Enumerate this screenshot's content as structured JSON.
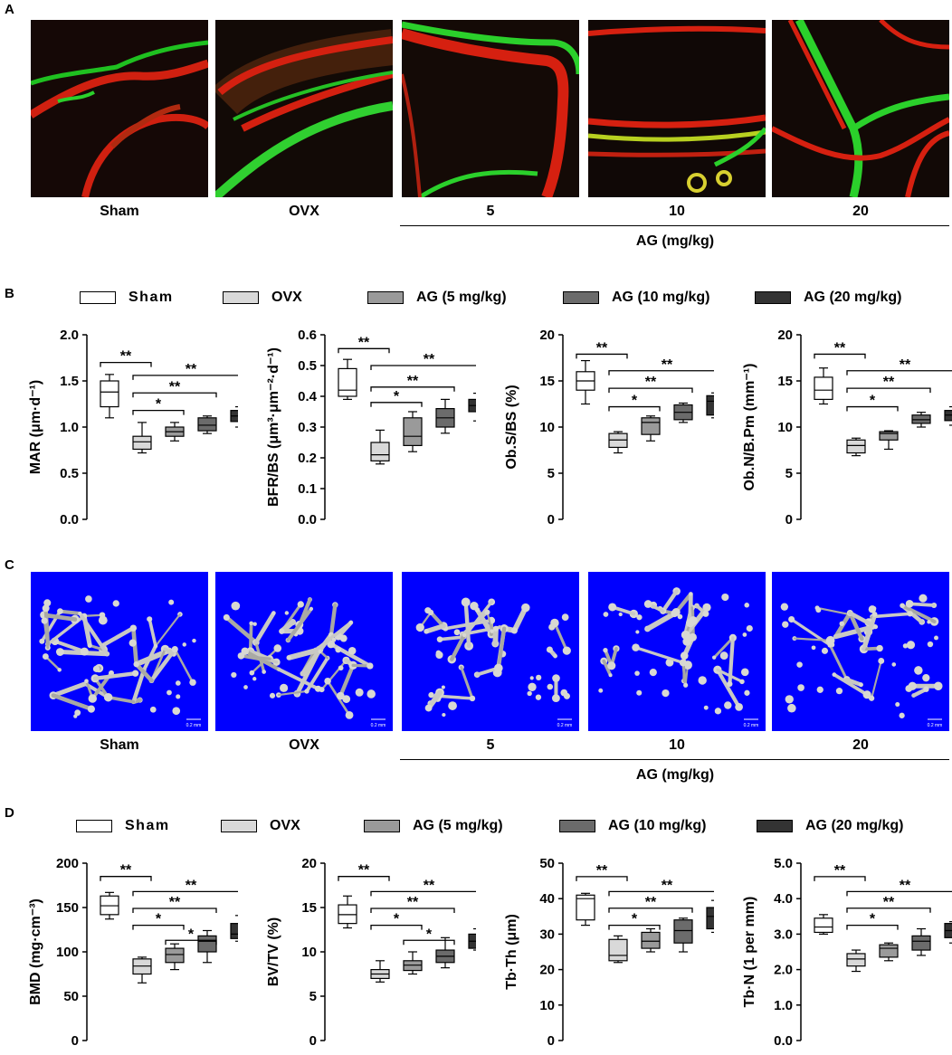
{
  "panels": {
    "A": {
      "label": "A",
      "images": [
        {
          "caption": "Sham",
          "stain": [
            "red",
            "green"
          ]
        },
        {
          "caption": "OVX",
          "stain": [
            "red",
            "green"
          ]
        },
        {
          "caption": "5",
          "stain": [
            "red",
            "green"
          ]
        },
        {
          "caption": "10",
          "stain": [
            "red",
            "green"
          ]
        },
        {
          "caption": "20",
          "stain": [
            "red",
            "green"
          ]
        }
      ],
      "group_label": "AG (mg/kg)"
    },
    "B": {
      "label": "B"
    },
    "C": {
      "label": "C",
      "background_color": "#0000ff",
      "scale_bar": "0.2 mm",
      "images": [
        {
          "caption": "Sham"
        },
        {
          "caption": "OVX"
        },
        {
          "caption": "5"
        },
        {
          "caption": "10"
        },
        {
          "caption": "20"
        }
      ],
      "group_label": "AG (mg/kg)"
    },
    "D": {
      "label": "D"
    }
  },
  "legend": [
    {
      "label": "Sham",
      "color": "#ffffff"
    },
    {
      "label": "OVX",
      "color": "#d9d9d9"
    },
    {
      "label": "AG (5 mg/kg)",
      "color": "#9a9a9a"
    },
    {
      "label": "AG (10 mg/kg)",
      "color": "#6b6b6b"
    },
    {
      "label": "AG (20 mg/kg)",
      "color": "#333333"
    }
  ],
  "chart_data": [
    {
      "panel": "B",
      "type": "box",
      "ylabel": "MAR (μm·d⁻¹)",
      "ylim": [
        0,
        2.0
      ],
      "yticks": [
        "0.0",
        "0.5",
        "1.0",
        "1.5",
        "2.0"
      ],
      "boxes": [
        {
          "group": "Sham",
          "min": 1.1,
          "q1": 1.22,
          "median": 1.38,
          "q3": 1.5,
          "max": 1.57
        },
        {
          "group": "OVX",
          "min": 0.72,
          "q1": 0.76,
          "median": 0.84,
          "q3": 0.9,
          "max": 1.05
        },
        {
          "group": "AG (5 mg/kg)",
          "min": 0.85,
          "q1": 0.9,
          "median": 0.95,
          "q3": 1.0,
          "max": 1.05
        },
        {
          "group": "AG (10 mg/kg)",
          "min": 0.93,
          "q1": 0.96,
          "median": 1.02,
          "q3": 1.1,
          "max": 1.12
        },
        {
          "group": "AG (20 mg/kg)",
          "min": 1.0,
          "q1": 1.06,
          "median": 1.12,
          "q3": 1.18,
          "max": 1.22
        }
      ],
      "significance": [
        {
          "from": 0,
          "to": 1,
          "y": 1.7,
          "text": "**"
        },
        {
          "from": 1,
          "to": 4,
          "y": 1.56,
          "text": "**"
        },
        {
          "from": 1,
          "to": 3,
          "y": 1.37,
          "text": "**"
        },
        {
          "from": 1,
          "to": 2,
          "y": 1.18,
          "text": "*"
        }
      ]
    },
    {
      "panel": "B",
      "type": "box",
      "ylabel": "BFR/BS (μm³·μm⁻²·d⁻¹)",
      "ylim": [
        0,
        0.6
      ],
      "yticks": [
        "0.0",
        "0.1",
        "0.2",
        "0.3",
        "0.4",
        "0.5",
        "0.6"
      ],
      "boxes": [
        {
          "group": "Sham",
          "min": 0.39,
          "q1": 0.4,
          "median": 0.42,
          "q3": 0.49,
          "max": 0.52
        },
        {
          "group": "OVX",
          "min": 0.18,
          "q1": 0.19,
          "median": 0.21,
          "q3": 0.25,
          "max": 0.29
        },
        {
          "group": "AG (5 mg/kg)",
          "min": 0.22,
          "q1": 0.24,
          "median": 0.27,
          "q3": 0.33,
          "max": 0.35
        },
        {
          "group": "AG (10 mg/kg)",
          "min": 0.28,
          "q1": 0.3,
          "median": 0.33,
          "q3": 0.36,
          "max": 0.39
        },
        {
          "group": "AG (20 mg/kg)",
          "min": 0.32,
          "q1": 0.35,
          "median": 0.37,
          "q3": 0.39,
          "max": 0.41
        }
      ],
      "significance": [
        {
          "from": 0,
          "to": 1,
          "y": 0.555,
          "text": "**"
        },
        {
          "from": 1,
          "to": 4,
          "y": 0.5,
          "text": "**"
        },
        {
          "from": 1,
          "to": 3,
          "y": 0.43,
          "text": "**"
        },
        {
          "from": 1,
          "to": 2,
          "y": 0.38,
          "text": "*"
        }
      ]
    },
    {
      "panel": "B",
      "type": "box",
      "ylabel": "Ob.S/BS (%)",
      "ylim": [
        0,
        20
      ],
      "yticks": [
        "0",
        "5",
        "10",
        "15",
        "20"
      ],
      "boxes": [
        {
          "group": "Sham",
          "min": 12.5,
          "q1": 14.0,
          "median": 15.0,
          "q3": 16.0,
          "max": 17.2
        },
        {
          "group": "OVX",
          "min": 7.2,
          "q1": 7.8,
          "median": 8.6,
          "q3": 9.3,
          "max": 9.5
        },
        {
          "group": "AG (5 mg/kg)",
          "min": 8.5,
          "q1": 9.2,
          "median": 10.5,
          "q3": 11.0,
          "max": 11.2
        },
        {
          "group": "AG (10 mg/kg)",
          "min": 10.5,
          "q1": 10.8,
          "median": 11.6,
          "q3": 12.4,
          "max": 12.6
        },
        {
          "group": "AG (20 mg/kg)",
          "min": 11.0,
          "q1": 11.3,
          "median": 12.8,
          "q3": 13.4,
          "max": 13.7
        }
      ],
      "significance": [
        {
          "from": 0,
          "to": 1,
          "y": 17.9,
          "text": "**"
        },
        {
          "from": 1,
          "to": 4,
          "y": 16.1,
          "text": "**"
        },
        {
          "from": 1,
          "to": 3,
          "y": 14.2,
          "text": "**"
        },
        {
          "from": 1,
          "to": 2,
          "y": 12.2,
          "text": "*"
        }
      ]
    },
    {
      "panel": "B",
      "type": "box",
      "ylabel": "Ob.N/B.Pm (mm⁻¹)",
      "ylim": [
        0,
        20
      ],
      "yticks": [
        "0",
        "5",
        "10",
        "15",
        "20"
      ],
      "boxes": [
        {
          "group": "Sham",
          "min": 12.5,
          "q1": 13.0,
          "median": 14.0,
          "q3": 15.4,
          "max": 16.4
        },
        {
          "group": "OVX",
          "min": 6.9,
          "q1": 7.2,
          "median": 8.0,
          "q3": 8.6,
          "max": 8.8
        },
        {
          "group": "AG (5 mg/kg)",
          "min": 7.6,
          "q1": 8.6,
          "median": 9.3,
          "q3": 9.5,
          "max": 9.6
        },
        {
          "group": "AG (10 mg/kg)",
          "min": 10.0,
          "q1": 10.4,
          "median": 10.8,
          "q3": 11.3,
          "max": 11.6
        },
        {
          "group": "AG (20 mg/kg)",
          "min": 10.2,
          "q1": 10.7,
          "median": 11.3,
          "q3": 11.8,
          "max": 12.2
        }
      ],
      "significance": [
        {
          "from": 0,
          "to": 1,
          "y": 17.9,
          "text": "**"
        },
        {
          "from": 1,
          "to": 4,
          "y": 16.1,
          "text": "**"
        },
        {
          "from": 1,
          "to": 3,
          "y": 14.2,
          "text": "**"
        },
        {
          "from": 1,
          "to": 2,
          "y": 12.2,
          "text": "*"
        }
      ]
    },
    {
      "panel": "D",
      "type": "box",
      "ylabel": "BMD (mg·cm⁻³)",
      "ylim": [
        0,
        200
      ],
      "yticks": [
        "0",
        "50",
        "100",
        "150",
        "200"
      ],
      "boxes": [
        {
          "group": "Sham",
          "min": 137,
          "q1": 142,
          "median": 152,
          "q3": 163,
          "max": 167
        },
        {
          "group": "OVX",
          "min": 65,
          "q1": 75,
          "median": 84,
          "q3": 92,
          "max": 94
        },
        {
          "group": "AG (5 mg/kg)",
          "min": 80,
          "q1": 88,
          "median": 97,
          "q3": 104,
          "max": 109
        },
        {
          "group": "AG (10 mg/kg)",
          "min": 88,
          "q1": 100,
          "median": 112,
          "q3": 118,
          "max": 124
        },
        {
          "group": "AG (20 mg/kg)",
          "min": 112,
          "q1": 115,
          "median": 120,
          "q3": 132,
          "max": 141
        }
      ],
      "significance": [
        {
          "from": 0,
          "to": 1,
          "y": 185,
          "text": "**"
        },
        {
          "from": 1,
          "to": 4,
          "y": 168,
          "text": "**"
        },
        {
          "from": 1,
          "to": 3,
          "y": 149,
          "text": "**"
        },
        {
          "from": 1,
          "to": 2,
          "y": 130,
          "text": "*"
        },
        {
          "from": 2,
          "to": 3,
          "y": 113,
          "text": "*"
        }
      ]
    },
    {
      "panel": "D",
      "type": "box",
      "ylabel": "BV/TV (%)",
      "ylim": [
        0,
        20
      ],
      "yticks": [
        "0",
        "5",
        "10",
        "15",
        "20"
      ],
      "boxes": [
        {
          "group": "Sham",
          "min": 12.7,
          "q1": 13.2,
          "median": 14.2,
          "q3": 15.3,
          "max": 16.3
        },
        {
          "group": "OVX",
          "min": 6.6,
          "q1": 7.0,
          "median": 7.5,
          "q3": 8.0,
          "max": 9.0
        },
        {
          "group": "AG (5 mg/kg)",
          "min": 7.5,
          "q1": 7.9,
          "median": 8.5,
          "q3": 9.0,
          "max": 10.0
        },
        {
          "group": "AG (10 mg/kg)",
          "min": 8.2,
          "q1": 8.8,
          "median": 9.5,
          "q3": 10.2,
          "max": 11.6
        },
        {
          "group": "AG (20 mg/kg)",
          "min": 10.2,
          "q1": 10.4,
          "median": 11.2,
          "q3": 12.0,
          "max": 12.6
        }
      ],
      "significance": [
        {
          "from": 0,
          "to": 1,
          "y": 18.5,
          "text": "**"
        },
        {
          "from": 1,
          "to": 4,
          "y": 16.8,
          "text": "**"
        },
        {
          "from": 1,
          "to": 3,
          "y": 14.9,
          "text": "**"
        },
        {
          "from": 1,
          "to": 2,
          "y": 13.0,
          "text": "*"
        },
        {
          "from": 2,
          "to": 3,
          "y": 11.3,
          "text": "*"
        }
      ]
    },
    {
      "panel": "D",
      "type": "box",
      "ylabel": "Tb·Th (μm)",
      "ylim": [
        0,
        50
      ],
      "yticks": [
        "0",
        "10",
        "20",
        "30",
        "40",
        "50"
      ],
      "boxes": [
        {
          "group": "Sham",
          "min": 32.5,
          "q1": 34.0,
          "median": 40.0,
          "q3": 41.0,
          "max": 41.5
        },
        {
          "group": "OVX",
          "min": 22.0,
          "q1": 22.5,
          "median": 24.0,
          "q3": 28.5,
          "max": 29.5
        },
        {
          "group": "AG (5 mg/kg)",
          "min": 25.0,
          "q1": 26.0,
          "median": 28.0,
          "q3": 30.5,
          "max": 31.5
        },
        {
          "group": "AG (10 mg/kg)",
          "min": 25.0,
          "q1": 27.5,
          "median": 31.0,
          "q3": 34.0,
          "max": 34.5
        },
        {
          "group": "AG (20 mg/kg)",
          "min": 30.5,
          "q1": 31.5,
          "median": 35.0,
          "q3": 37.5,
          "max": 39.5
        }
      ],
      "significance": [
        {
          "from": 0,
          "to": 1,
          "y": 46.2,
          "text": "**"
        },
        {
          "from": 1,
          "to": 4,
          "y": 42.0,
          "text": "**"
        },
        {
          "from": 1,
          "to": 3,
          "y": 37.3,
          "text": "**"
        },
        {
          "from": 1,
          "to": 2,
          "y": 32.5,
          "text": "*"
        }
      ]
    },
    {
      "panel": "D",
      "type": "box",
      "ylabel": "Tb·N (1 per mm)",
      "ylim": [
        0,
        5.0
      ],
      "yticks": [
        "0.0",
        "1.0",
        "2.0",
        "3.0",
        "4.0",
        "5.0"
      ],
      "boxes": [
        {
          "group": "Sham",
          "min": 3.0,
          "q1": 3.05,
          "median": 3.2,
          "q3": 3.45,
          "max": 3.55
        },
        {
          "group": "OVX",
          "min": 1.95,
          "q1": 2.1,
          "median": 2.3,
          "q3": 2.45,
          "max": 2.55
        },
        {
          "group": "AG (5 mg/kg)",
          "min": 2.25,
          "q1": 2.35,
          "median": 2.6,
          "q3": 2.7,
          "max": 2.75
        },
        {
          "group": "AG (10 mg/kg)",
          "min": 2.4,
          "q1": 2.55,
          "median": 2.8,
          "q3": 2.95,
          "max": 3.15
        },
        {
          "group": "AG (20 mg/kg)",
          "min": 2.75,
          "q1": 2.9,
          "median": 3.1,
          "q3": 3.3,
          "max": 3.35
        }
      ],
      "significance": [
        {
          "from": 0,
          "to": 1,
          "y": 4.62,
          "text": "**"
        },
        {
          "from": 1,
          "to": 4,
          "y": 4.2,
          "text": "**"
        },
        {
          "from": 1,
          "to": 3,
          "y": 3.73,
          "text": "**"
        },
        {
          "from": 1,
          "to": 2,
          "y": 3.25,
          "text": "*"
        }
      ]
    }
  ]
}
